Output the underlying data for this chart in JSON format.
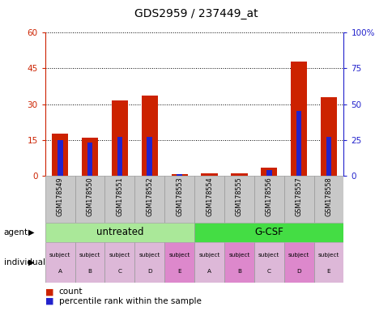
{
  "title": "GDS2959 / 237449_at",
  "samples": [
    "GSM178549",
    "GSM178550",
    "GSM178551",
    "GSM178552",
    "GSM178553",
    "GSM178554",
    "GSM178555",
    "GSM178556",
    "GSM178557",
    "GSM178558"
  ],
  "count_values": [
    17.5,
    16.0,
    31.5,
    33.5,
    0.5,
    1.0,
    1.0,
    3.5,
    48.0,
    33.0
  ],
  "percentile_values": [
    25,
    23,
    27,
    27,
    1,
    0,
    0,
    4,
    45,
    27
  ],
  "ylim_left": [
    0,
    60
  ],
  "ylim_right": [
    0,
    100
  ],
  "yticks_left": [
    0,
    15,
    30,
    45,
    60
  ],
  "yticks_right": [
    0,
    25,
    50,
    75,
    100
  ],
  "ytick_labels_left": [
    "0",
    "15",
    "30",
    "45",
    "60"
  ],
  "ytick_labels_right": [
    "0",
    "25",
    "50",
    "75",
    "100%"
  ],
  "bar_color_red": "#cc2200",
  "bar_color_blue": "#2222cc",
  "agent_groups": [
    {
      "label": "untreated",
      "start": 0,
      "end": 5,
      "color": "#aae899"
    },
    {
      "label": "G-CSF",
      "start": 5,
      "end": 10,
      "color": "#44dd44"
    }
  ],
  "individuals": [
    {
      "label": "subject\nA",
      "idx": 0,
      "highlighted": false
    },
    {
      "label": "subject\nB",
      "idx": 1,
      "highlighted": false
    },
    {
      "label": "subject\nC",
      "idx": 2,
      "highlighted": false
    },
    {
      "label": "subject\nD",
      "idx": 3,
      "highlighted": false
    },
    {
      "label": "subject\nE",
      "idx": 4,
      "highlighted": true
    },
    {
      "label": "subject\nA",
      "idx": 5,
      "highlighted": false
    },
    {
      "label": "subject\nB",
      "idx": 6,
      "highlighted": true
    },
    {
      "label": "subject\nC",
      "idx": 7,
      "highlighted": false
    },
    {
      "label": "subject\nD",
      "idx": 8,
      "highlighted": true
    },
    {
      "label": "subject\nE",
      "idx": 9,
      "highlighted": false
    }
  ],
  "individual_highlight_color": "#dd88cc",
  "individual_normal_color": "#ddb8d8",
  "sample_row_color": "#c8c8c8",
  "bar_width": 0.55,
  "blue_bar_width": 0.18
}
